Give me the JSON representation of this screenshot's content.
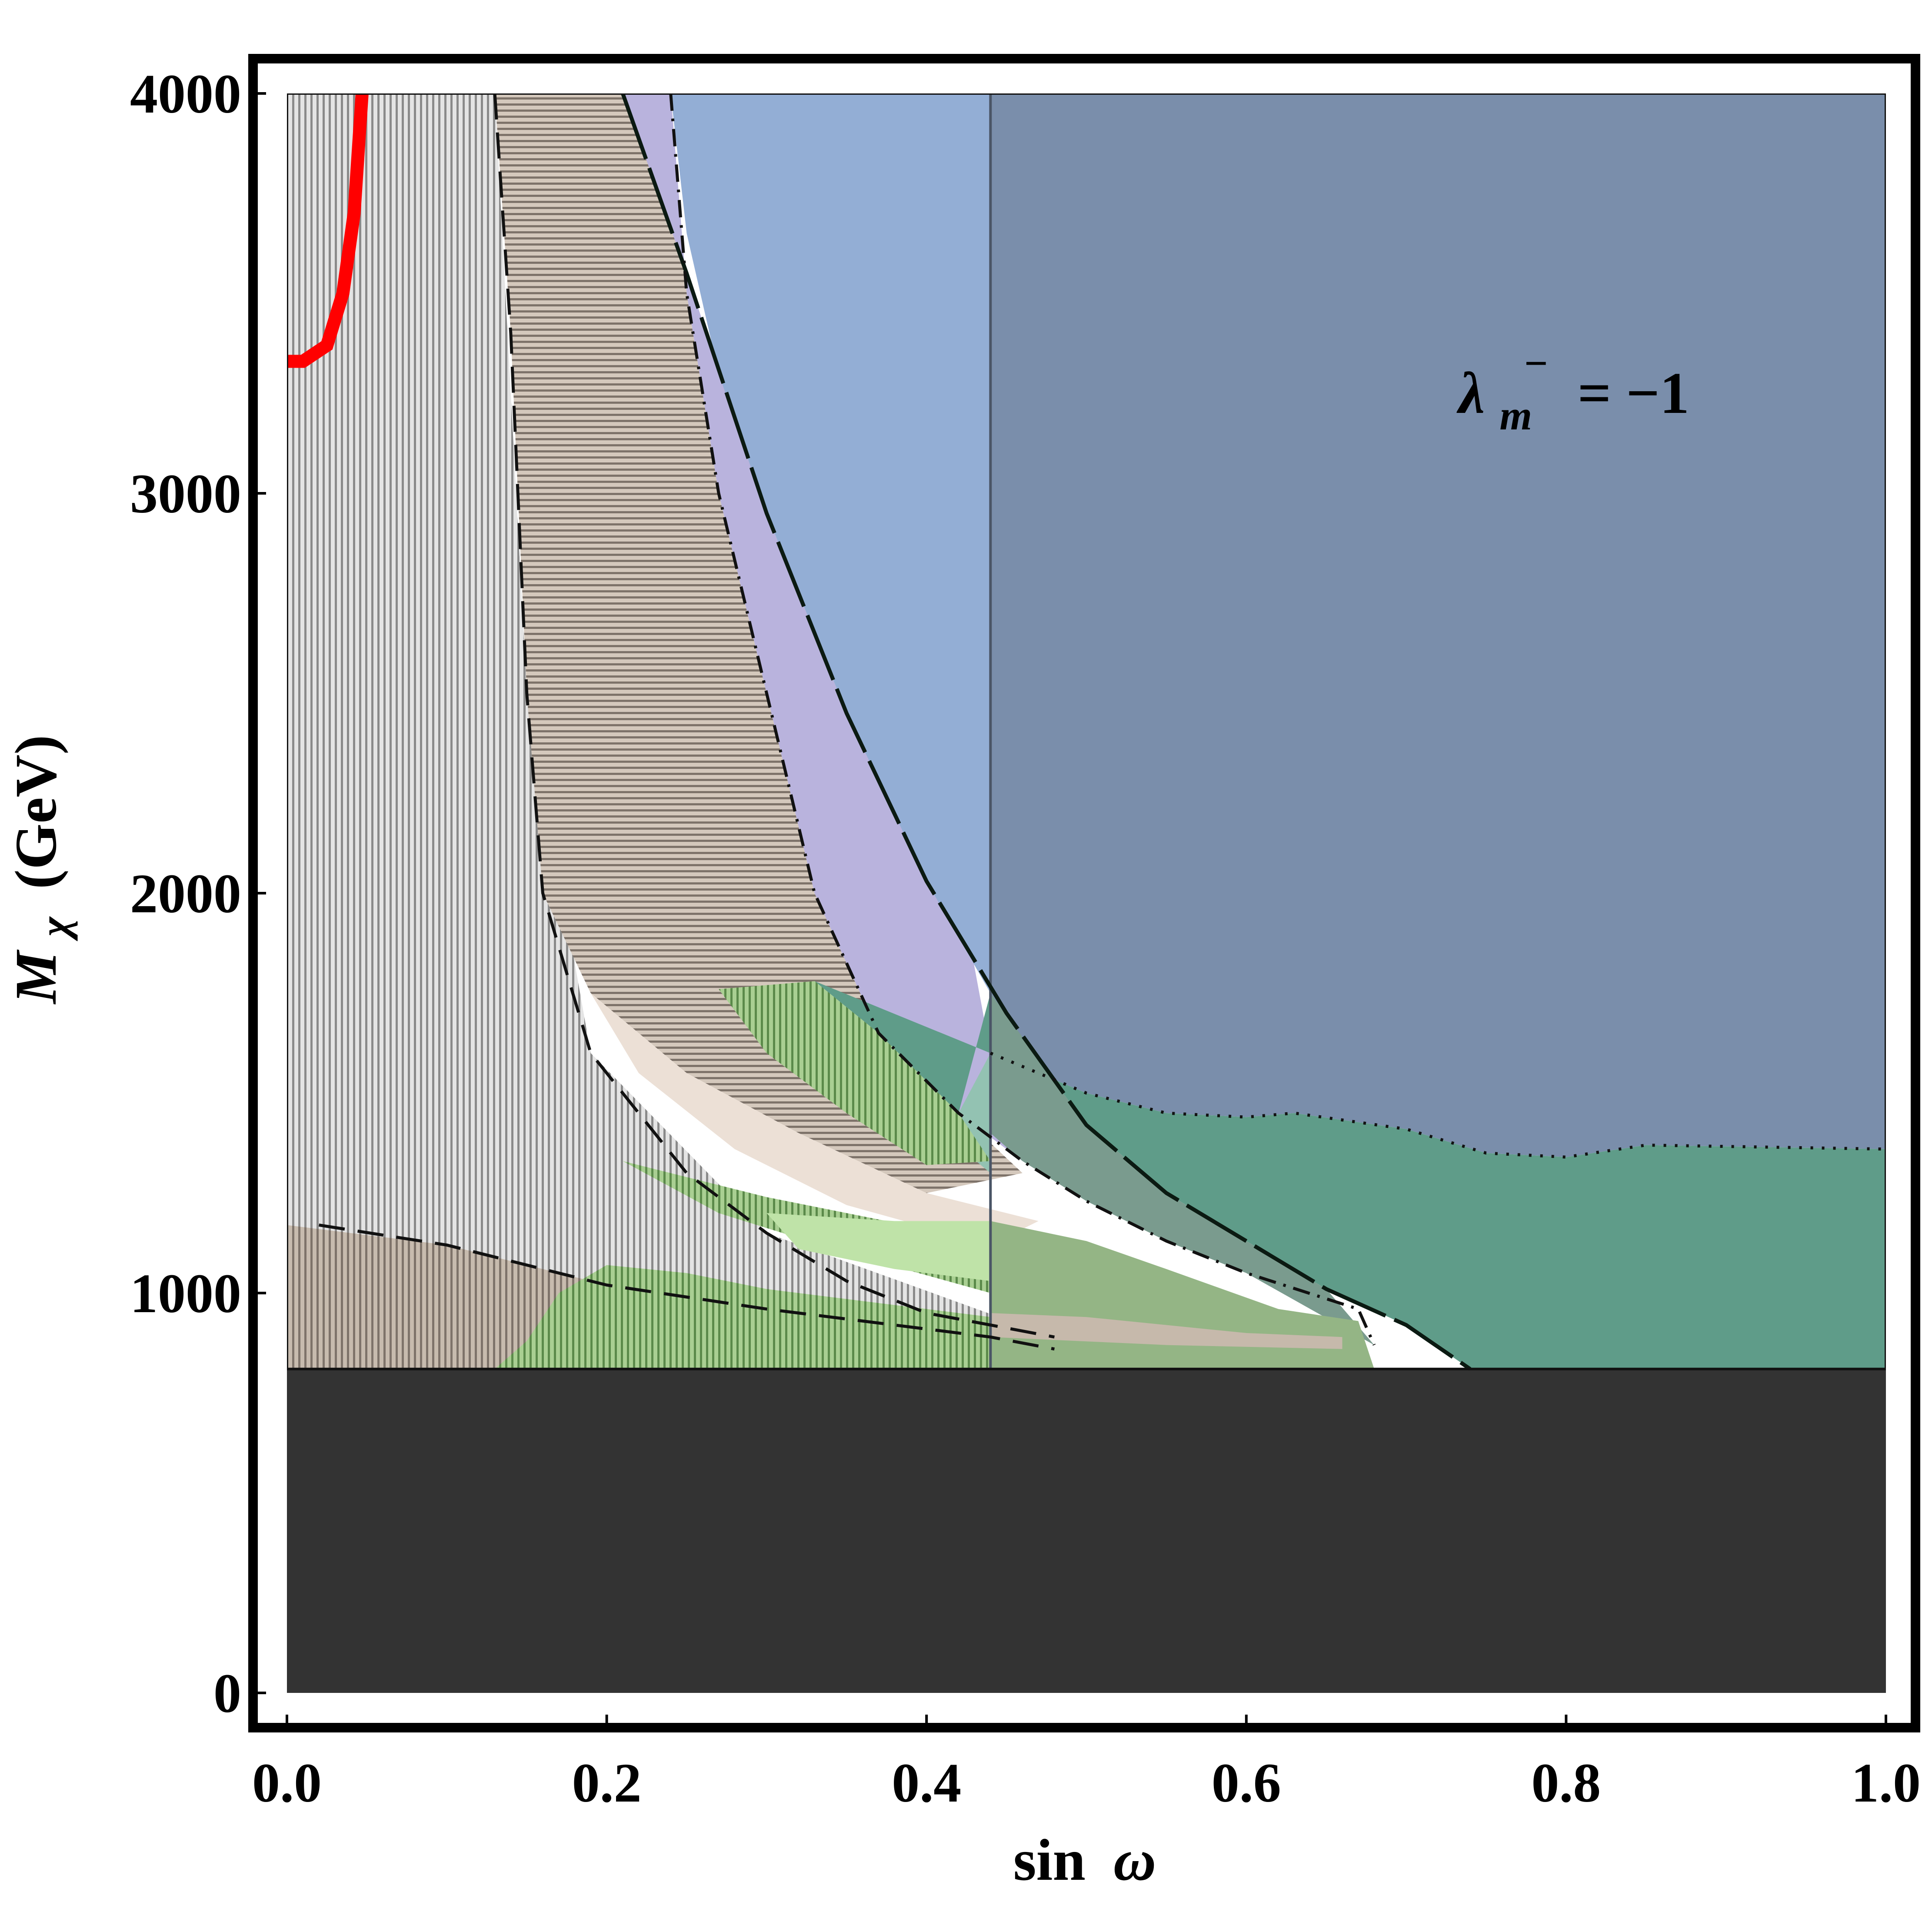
{
  "chart_data": {
    "type": "area",
    "xlabel_main": "sin",
    "xlabel_symbol": "ω",
    "ylabel_symbol": "M",
    "ylabel_sub": "χ",
    "ylabel_unit": "(GeV)",
    "xlim": [
      0.0,
      1.0
    ],
    "ylim": [
      0,
      4000
    ],
    "x_ticks": [
      "0.0",
      "0.2",
      "0.4",
      "0.6",
      "0.8",
      "1.0"
    ],
    "y_ticks": [
      "0",
      "1000",
      "2000",
      "3000",
      "4000"
    ],
    "annotation": {
      "lambda": "λ",
      "sub": "m",
      "sup": "−",
      "rhs": "= −1"
    },
    "colors": {
      "blue_region": "#93aed5",
      "slate_region": "#7a8eab",
      "lavender_region": "#b9b3dd",
      "teal_region": "#5f9c89",
      "light_green_region": "#bfe3a8",
      "green_hatch": "#8fba7c",
      "tan_hatch": "#a99d90",
      "grey_hatch": "#b5b5b5",
      "excluded_band": "#333333",
      "red_curve": "#ff0000"
    },
    "regions": {
      "excluded_band": {
        "y": [
          0,
          810
        ]
      },
      "grey_hatched": {
        "x": [
          0.0,
          0.11
        ],
        "y": [
          810,
          4000
        ]
      },
      "slate_block": {
        "x": [
          0.44,
          1.0
        ],
        "y": [
          1400,
          4000
        ]
      },
      "vertical_line_x": 0.44
    },
    "curves": {
      "red_thick": [
        [
          0.0,
          3330
        ],
        [
          0.01,
          3330
        ],
        [
          0.025,
          3370
        ],
        [
          0.035,
          3500
        ],
        [
          0.042,
          3700
        ],
        [
          0.047,
          4000
        ]
      ],
      "solid_black": [
        [
          0.21,
          4000
        ],
        [
          0.25,
          3550
        ],
        [
          0.3,
          2950
        ],
        [
          0.35,
          2450
        ],
        [
          0.4,
          2030
        ],
        [
          0.45,
          1700
        ],
        [
          0.5,
          1420
        ],
        [
          0.55,
          1250
        ],
        [
          0.6,
          1130
        ],
        [
          0.65,
          1010
        ],
        [
          0.7,
          920
        ],
        [
          0.74,
          810
        ]
      ],
      "long_dash": [
        [
          0.13,
          4000
        ],
        [
          0.14,
          3400
        ],
        [
          0.15,
          2500
        ],
        [
          0.16,
          2000
        ],
        [
          0.19,
          1600
        ],
        [
          0.25,
          1300
        ],
        [
          0.3,
          1150
        ],
        [
          0.35,
          1030
        ],
        [
          0.4,
          950
        ],
        [
          0.44,
          920
        ],
        [
          0.48,
          890
        ]
      ],
      "dash_dot": [
        [
          0.24,
          4000
        ],
        [
          0.25,
          3500
        ],
        [
          0.27,
          3000
        ],
        [
          0.3,
          2500
        ],
        [
          0.33,
          2000
        ],
        [
          0.37,
          1650
        ],
        [
          0.42,
          1450
        ],
        [
          0.46,
          1330
        ],
        [
          0.5,
          1230
        ],
        [
          0.55,
          1130
        ],
        [
          0.6,
          1050
        ],
        [
          0.67,
          960
        ],
        [
          0.68,
          870
        ]
      ],
      "low_dash": [
        [
          0.02,
          1170
        ],
        [
          0.1,
          1120
        ],
        [
          0.2,
          1020
        ],
        [
          0.3,
          960
        ],
        [
          0.4,
          910
        ],
        [
          0.44,
          890
        ],
        [
          0.48,
          860
        ]
      ],
      "dotted_teal_top": [
        [
          0.44,
          1600
        ],
        [
          0.5,
          1500
        ],
        [
          0.55,
          1450
        ],
        [
          0.6,
          1440
        ],
        [
          0.63,
          1450
        ],
        [
          0.7,
          1410
        ],
        [
          0.75,
          1350
        ],
        [
          0.8,
          1340
        ],
        [
          0.85,
          1370
        ],
        [
          1.0,
          1360
        ]
      ]
    }
  }
}
